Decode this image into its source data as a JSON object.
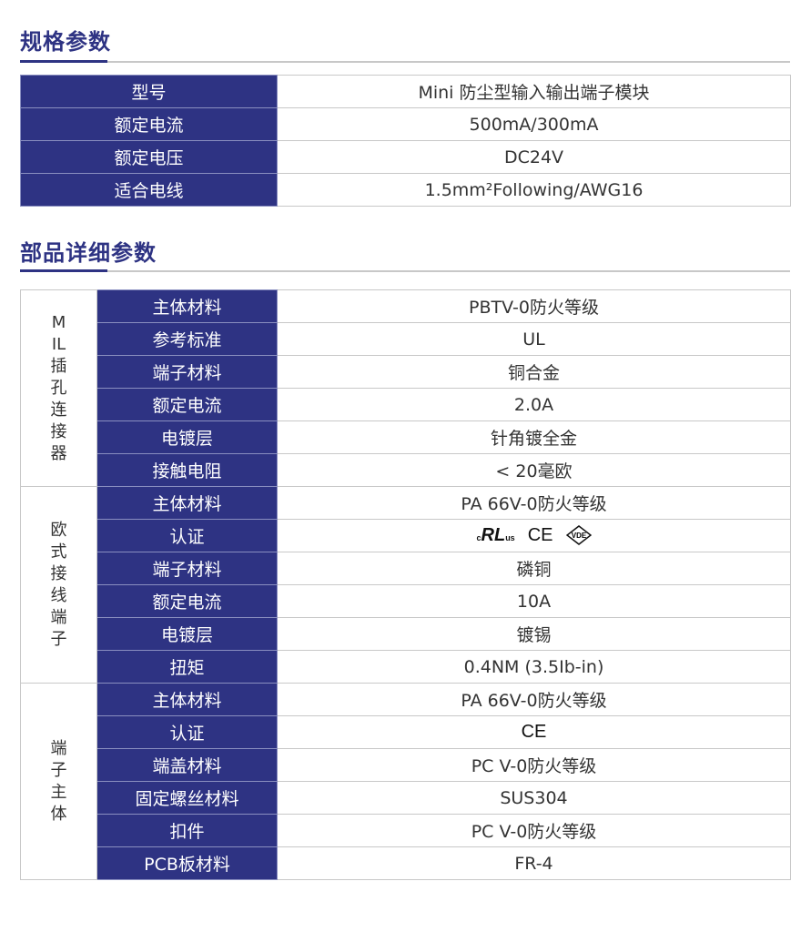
{
  "spec": {
    "title": "规格参数",
    "rows": [
      {
        "label": "型号",
        "value": "Mini 防尘型输入输出端子模块"
      },
      {
        "label": "额定电流",
        "value": "500mA/300mA"
      },
      {
        "label": "额定电压",
        "value": "DC24V"
      },
      {
        "label": "适合电线",
        "value": "1.5mm²Following/AWG16"
      }
    ]
  },
  "parts": {
    "title": "部品详细参数",
    "groups": [
      {
        "name": "MIL插孔连接器",
        "rows": [
          {
            "label": "主体材料",
            "value": "PBTV-0防火等级"
          },
          {
            "label": "参考标准",
            "value": "UL"
          },
          {
            "label": "端子材料",
            "value": "铜合金"
          },
          {
            "label": "额定电流",
            "value": "2.0A"
          },
          {
            "label": "电镀层",
            "value": "针角镀全金"
          },
          {
            "label": "接触电阻",
            "value": "< 20毫欧"
          }
        ]
      },
      {
        "name": "欧式接线端子",
        "rows": [
          {
            "label": "主体材料",
            "value": "PA 66V-0防火等级"
          },
          {
            "label": "认证",
            "value": "",
            "icons": [
              "ul-mark-icon",
              "ce-mark-icon",
              "vde-mark-icon"
            ],
            "logo_text": [
              "cULus",
              "CE",
              "VDE"
            ]
          },
          {
            "label": "端子材料",
            "value": "磷铜"
          },
          {
            "label": "额定电流",
            "value": "10A"
          },
          {
            "label": "电镀层",
            "value": "镀锡"
          },
          {
            "label": "扭矩",
            "value": "0.4NM (3.5Ib-in)"
          }
        ]
      },
      {
        "name": "端子主体",
        "rows": [
          {
            "label": "主体材料",
            "value": "PA 66V-0防火等级"
          },
          {
            "label": "认证",
            "value": "",
            "icons": [
              "ce-mark-icon"
            ],
            "logo_text": [
              "CE"
            ]
          },
          {
            "label": "端盖材料",
            "value": "PC V-0防火等级"
          },
          {
            "label": "固定螺丝材料",
            "value": "SUS304"
          },
          {
            "label": "扣件",
            "value": "PC V-0防火等级"
          },
          {
            "label": "PCB板材料",
            "value": "FR-4"
          }
        ]
      }
    ]
  },
  "colors": {
    "accent": "#2e3383",
    "border": "#c8c8c8"
  }
}
